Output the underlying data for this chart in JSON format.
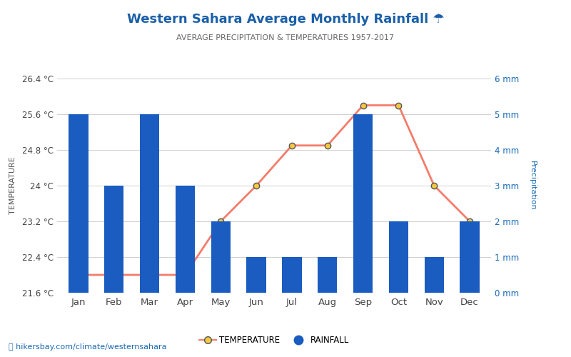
{
  "months": [
    "Jan",
    "Feb",
    "Mar",
    "Apr",
    "May",
    "Jun",
    "Jul",
    "Aug",
    "Sep",
    "Oct",
    "Nov",
    "Dec"
  ],
  "temperature": [
    22.0,
    22.0,
    22.0,
    22.0,
    23.2,
    24.0,
    24.9,
    24.9,
    25.8,
    25.8,
    24.0,
    23.2
  ],
  "rainfall": [
    5,
    3,
    5,
    3,
    2,
    1,
    1,
    1,
    5,
    2,
    1,
    2
  ],
  "title_main": "Western Sahara Average Monthly Rainfall",
  "title_icon": " 🌧",
  "subtitle": "AVERAGE PRECIPITATION & TEMPERATURES 1957-2017",
  "title_color": "#1a5fa8",
  "subtitle_color": "#666666",
  "bar_color": "#1a5cbf",
  "line_color": "#f47c6a",
  "marker_face_color": "#f5c842",
  "marker_edge_color": "#555555",
  "ylabel_left": "TEMPERATURE",
  "ylabel_right": "Precipitation",
  "ylim_temp": [
    21.6,
    26.4
  ],
  "ylim_rain": [
    0,
    6
  ],
  "yticks_temp": [
    21.6,
    22.4,
    23.2,
    24.0,
    24.8,
    25.6,
    26.4
  ],
  "yticks_rain": [
    0,
    1,
    2,
    3,
    4,
    5,
    6
  ],
  "ytick_labels_temp": [
    "21.6 °C",
    "22.4 °C",
    "23.2 °C",
    "24 °C",
    "24.8 °C",
    "25.6 °C",
    "26.4 °C"
  ],
  "ytick_labels_rain": [
    "0 mm",
    "1 mm",
    "2 mm",
    "3 mm",
    "4 mm",
    "5 mm",
    "6 mm"
  ],
  "footer_text": "hikersbay.com/climate/westernsahara",
  "background_color": "#ffffff",
  "grid_color": "#d0d0d0"
}
